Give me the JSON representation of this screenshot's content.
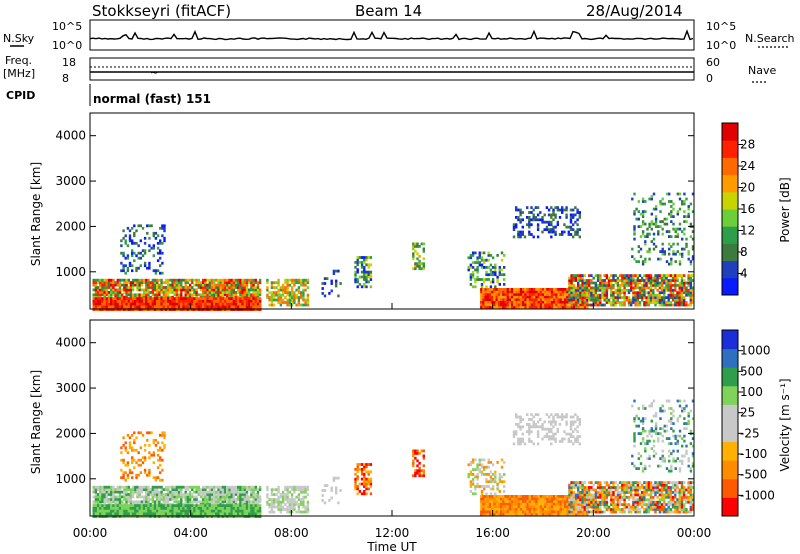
{
  "header": {
    "station": "Stokkseyri (fitACF)",
    "beam": "Beam 14",
    "date": "28/Aug/2014"
  },
  "panels": {
    "nsky_label": "N.Sky",
    "nsky_ticks": [
      "10^5",
      "10^0"
    ],
    "nsearch_label": "N.Search",
    "nsearch_ticks": [
      "10^5",
      "10^0"
    ],
    "freq_label_1": "Freq.",
    "freq_label_2": "[MHz]",
    "freq_ticks": [
      "18",
      "8"
    ],
    "nave_label": "Nave",
    "nave_ticks": [
      "60",
      "0"
    ],
    "cpid_label": "CPID",
    "cpid_value": "normal (fast) 151"
  },
  "colors": {
    "power_scale": [
      "#0a1aff",
      "#1f3fbf",
      "#3d7a3d",
      "#2e9e4a",
      "#6ccf3a",
      "#c8d400",
      "#ff9a00",
      "#ff6a00",
      "#ff2000",
      "#e00000"
    ],
    "velocity_scale": [
      "#ff0000",
      "#ff5a00",
      "#ff8c00",
      "#ffb000",
      "#c8c8c8",
      "#c8c8c8",
      "#7fd35a",
      "#2e9e4a",
      "#2f6fbf",
      "#1a2fd8"
    ]
  },
  "chart_data": [
    {
      "type": "heatmap",
      "title": "Power",
      "xlabel": "Time UT",
      "ylabel": "Slant Range [km]",
      "x_ticks": [
        "00:00",
        "04:00",
        "08:00",
        "12:00",
        "16:00",
        "20:00",
        "00:00"
      ],
      "y_ticks": [
        "1000",
        "2000",
        "3000",
        "4000"
      ],
      "ylim": [
        180,
        4500
      ],
      "colorbar": {
        "label": "Power [dB]",
        "ticks": [
          "4",
          "8",
          "12",
          "16",
          "20",
          "24",
          "28"
        ],
        "range": [
          0,
          30
        ]
      }
    },
    {
      "type": "heatmap",
      "title": "Velocity",
      "xlabel": "Time UT",
      "ylabel": "Slant Range [km]",
      "x_ticks": [
        "00:00",
        "04:00",
        "08:00",
        "12:00",
        "16:00",
        "20:00",
        "00:00"
      ],
      "y_ticks": [
        "1000",
        "2000",
        "3000",
        "4000"
      ],
      "ylim": [
        180,
        4500
      ],
      "colorbar": {
        "label": "Velocity [m s⁻¹]",
        "ticks": [
          "-1000",
          "-500",
          "-100",
          "-25",
          "25",
          "100",
          "500",
          "1000"
        ]
      }
    }
  ],
  "xaxis_title": "Time UT"
}
